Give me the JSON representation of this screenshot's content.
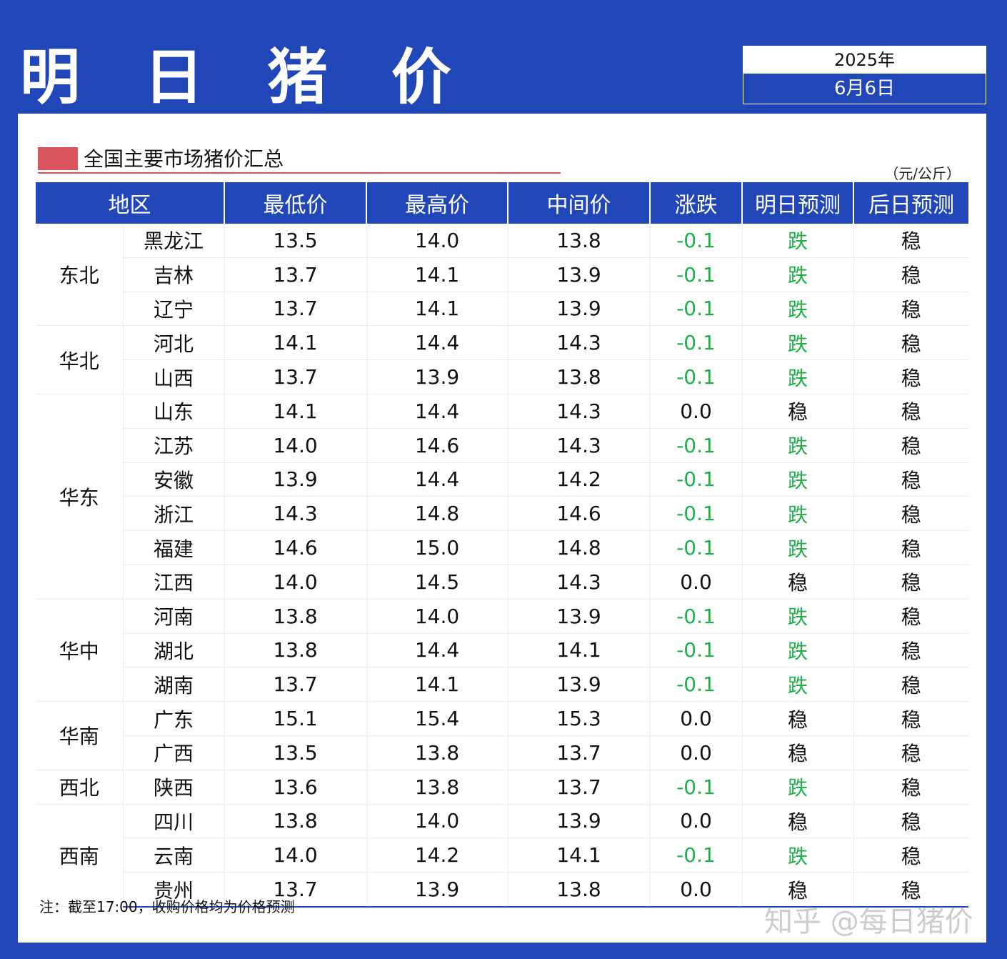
{
  "header": {
    "title": "明 日 猪 价",
    "year": "2025年",
    "date": "6月6日"
  },
  "section": {
    "title": "全国主要市场猪价汇总",
    "unit": "（元/公斤）"
  },
  "table": {
    "columns": [
      "地区",
      "最低价",
      "最高价",
      "中间价",
      "涨跌",
      "明日预测",
      "后日预测"
    ],
    "groups": [
      {
        "region": "东北",
        "rows": [
          {
            "province": "黑龙江",
            "low": "13.5",
            "high": "14.0",
            "mid": "13.8",
            "change": "-0.1",
            "tomorrow": "跌",
            "after": "稳"
          },
          {
            "province": "吉林",
            "low": "13.7",
            "high": "14.1",
            "mid": "13.9",
            "change": "-0.1",
            "tomorrow": "跌",
            "after": "稳"
          },
          {
            "province": "辽宁",
            "low": "13.7",
            "high": "14.1",
            "mid": "13.9",
            "change": "-0.1",
            "tomorrow": "跌",
            "after": "稳"
          }
        ]
      },
      {
        "region": "华北",
        "rows": [
          {
            "province": "河北",
            "low": "14.1",
            "high": "14.4",
            "mid": "14.3",
            "change": "-0.1",
            "tomorrow": "跌",
            "after": "稳"
          },
          {
            "province": "山西",
            "low": "13.7",
            "high": "13.9",
            "mid": "13.8",
            "change": "-0.1",
            "tomorrow": "跌",
            "after": "稳"
          }
        ]
      },
      {
        "region": "华东",
        "rows": [
          {
            "province": "山东",
            "low": "14.1",
            "high": "14.4",
            "mid": "14.3",
            "change": "0.0",
            "tomorrow": "稳",
            "after": "稳"
          },
          {
            "province": "江苏",
            "low": "14.0",
            "high": "14.6",
            "mid": "14.3",
            "change": "-0.1",
            "tomorrow": "跌",
            "after": "稳"
          },
          {
            "province": "安徽",
            "low": "13.9",
            "high": "14.4",
            "mid": "14.2",
            "change": "-0.1",
            "tomorrow": "跌",
            "after": "稳"
          },
          {
            "province": "浙江",
            "low": "14.3",
            "high": "14.8",
            "mid": "14.6",
            "change": "-0.1",
            "tomorrow": "跌",
            "after": "稳"
          },
          {
            "province": "福建",
            "low": "14.6",
            "high": "15.0",
            "mid": "14.8",
            "change": "-0.1",
            "tomorrow": "跌",
            "after": "稳"
          },
          {
            "province": "江西",
            "low": "14.0",
            "high": "14.5",
            "mid": "14.3",
            "change": "0.0",
            "tomorrow": "稳",
            "after": "稳"
          }
        ]
      },
      {
        "region": "华中",
        "rows": [
          {
            "province": "河南",
            "low": "13.8",
            "high": "14.0",
            "mid": "13.9",
            "change": "-0.1",
            "tomorrow": "跌",
            "after": "稳"
          },
          {
            "province": "湖北",
            "low": "13.8",
            "high": "14.4",
            "mid": "14.1",
            "change": "-0.1",
            "tomorrow": "跌",
            "after": "稳"
          },
          {
            "province": "湖南",
            "low": "13.7",
            "high": "14.1",
            "mid": "13.9",
            "change": "-0.1",
            "tomorrow": "跌",
            "after": "稳"
          }
        ]
      },
      {
        "region": "华南",
        "rows": [
          {
            "province": "广东",
            "low": "15.1",
            "high": "15.4",
            "mid": "15.3",
            "change": "0.0",
            "tomorrow": "稳",
            "after": "稳"
          },
          {
            "province": "广西",
            "low": "13.5",
            "high": "13.8",
            "mid": "13.7",
            "change": "0.0",
            "tomorrow": "稳",
            "after": "稳"
          }
        ]
      },
      {
        "region": "西北",
        "rows": [
          {
            "province": "陕西",
            "low": "13.6",
            "high": "13.8",
            "mid": "13.7",
            "change": "-0.1",
            "tomorrow": "跌",
            "after": "稳"
          }
        ]
      },
      {
        "region": "西南",
        "rows": [
          {
            "province": "四川",
            "low": "13.8",
            "high": "14.0",
            "mid": "13.9",
            "change": "0.0",
            "tomorrow": "稳",
            "after": "稳"
          },
          {
            "province": "云南",
            "low": "14.0",
            "high": "14.2",
            "mid": "14.1",
            "change": "-0.1",
            "tomorrow": "跌",
            "after": "稳"
          },
          {
            "province": "贵州",
            "low": "13.7",
            "high": "13.9",
            "mid": "13.8",
            "change": "0.0",
            "tomorrow": "稳",
            "after": "稳"
          }
        ]
      }
    ]
  },
  "footer": {
    "note": "注：截至17:00，收购价格均为价格预测",
    "watermark": "知乎 @每日猪价"
  },
  "colors": {
    "brand_blue": "#2146b8",
    "accent_red": "#d9545d",
    "fall_green": "#1fb04a"
  }
}
